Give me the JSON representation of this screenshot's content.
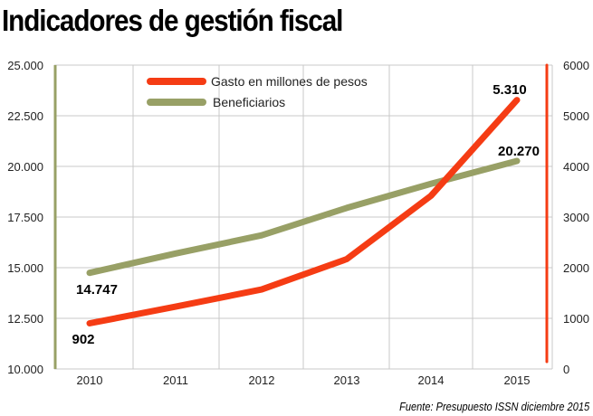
{
  "title": "Indicadores de gestión fiscal",
  "source": "Fuente: Presupuesto ISSN diciembre 2015",
  "chart_data": {
    "type": "line",
    "title": "Indicadores de gestión fiscal",
    "categories": [
      "2010",
      "2011",
      "2012",
      "2013",
      "2014",
      "2015"
    ],
    "left_axis": {
      "range": [
        10000,
        25000
      ],
      "ticks": [
        "10.000",
        "12.500",
        "15.000",
        "17.500",
        "20.000",
        "22.500",
        "25.000"
      ],
      "tick_values": [
        10000,
        12500,
        15000,
        17500,
        20000,
        22500,
        25000
      ],
      "color": "#98a066"
    },
    "right_axis": {
      "range": [
        0,
        6000
      ],
      "ticks": [
        "0",
        "1000",
        "2000",
        "3000",
        "4000",
        "5000",
        "6000"
      ],
      "tick_values": [
        0,
        1000,
        2000,
        3000,
        4000,
        5000,
        6000
      ],
      "color": "#f53c14"
    },
    "grid": true,
    "legend_position": "top",
    "series": [
      {
        "name": "Gasto en millones de pesos",
        "axis": "right",
        "color": "#f53c14",
        "values": [
          902,
          1230,
          1570,
          2170,
          3420,
          5310
        ],
        "labels": [
          {
            "index": 0,
            "text": "902"
          },
          {
            "index": 5,
            "text": "5.310"
          }
        ]
      },
      {
        "name": "Beneficiarios",
        "axis": "left",
        "color": "#98a066",
        "values": [
          14747,
          15700,
          16600,
          17950,
          19140,
          20270
        ],
        "labels": [
          {
            "index": 0,
            "text": "14.747"
          },
          {
            "index": 5,
            "text": "20.270"
          }
        ]
      }
    ]
  }
}
